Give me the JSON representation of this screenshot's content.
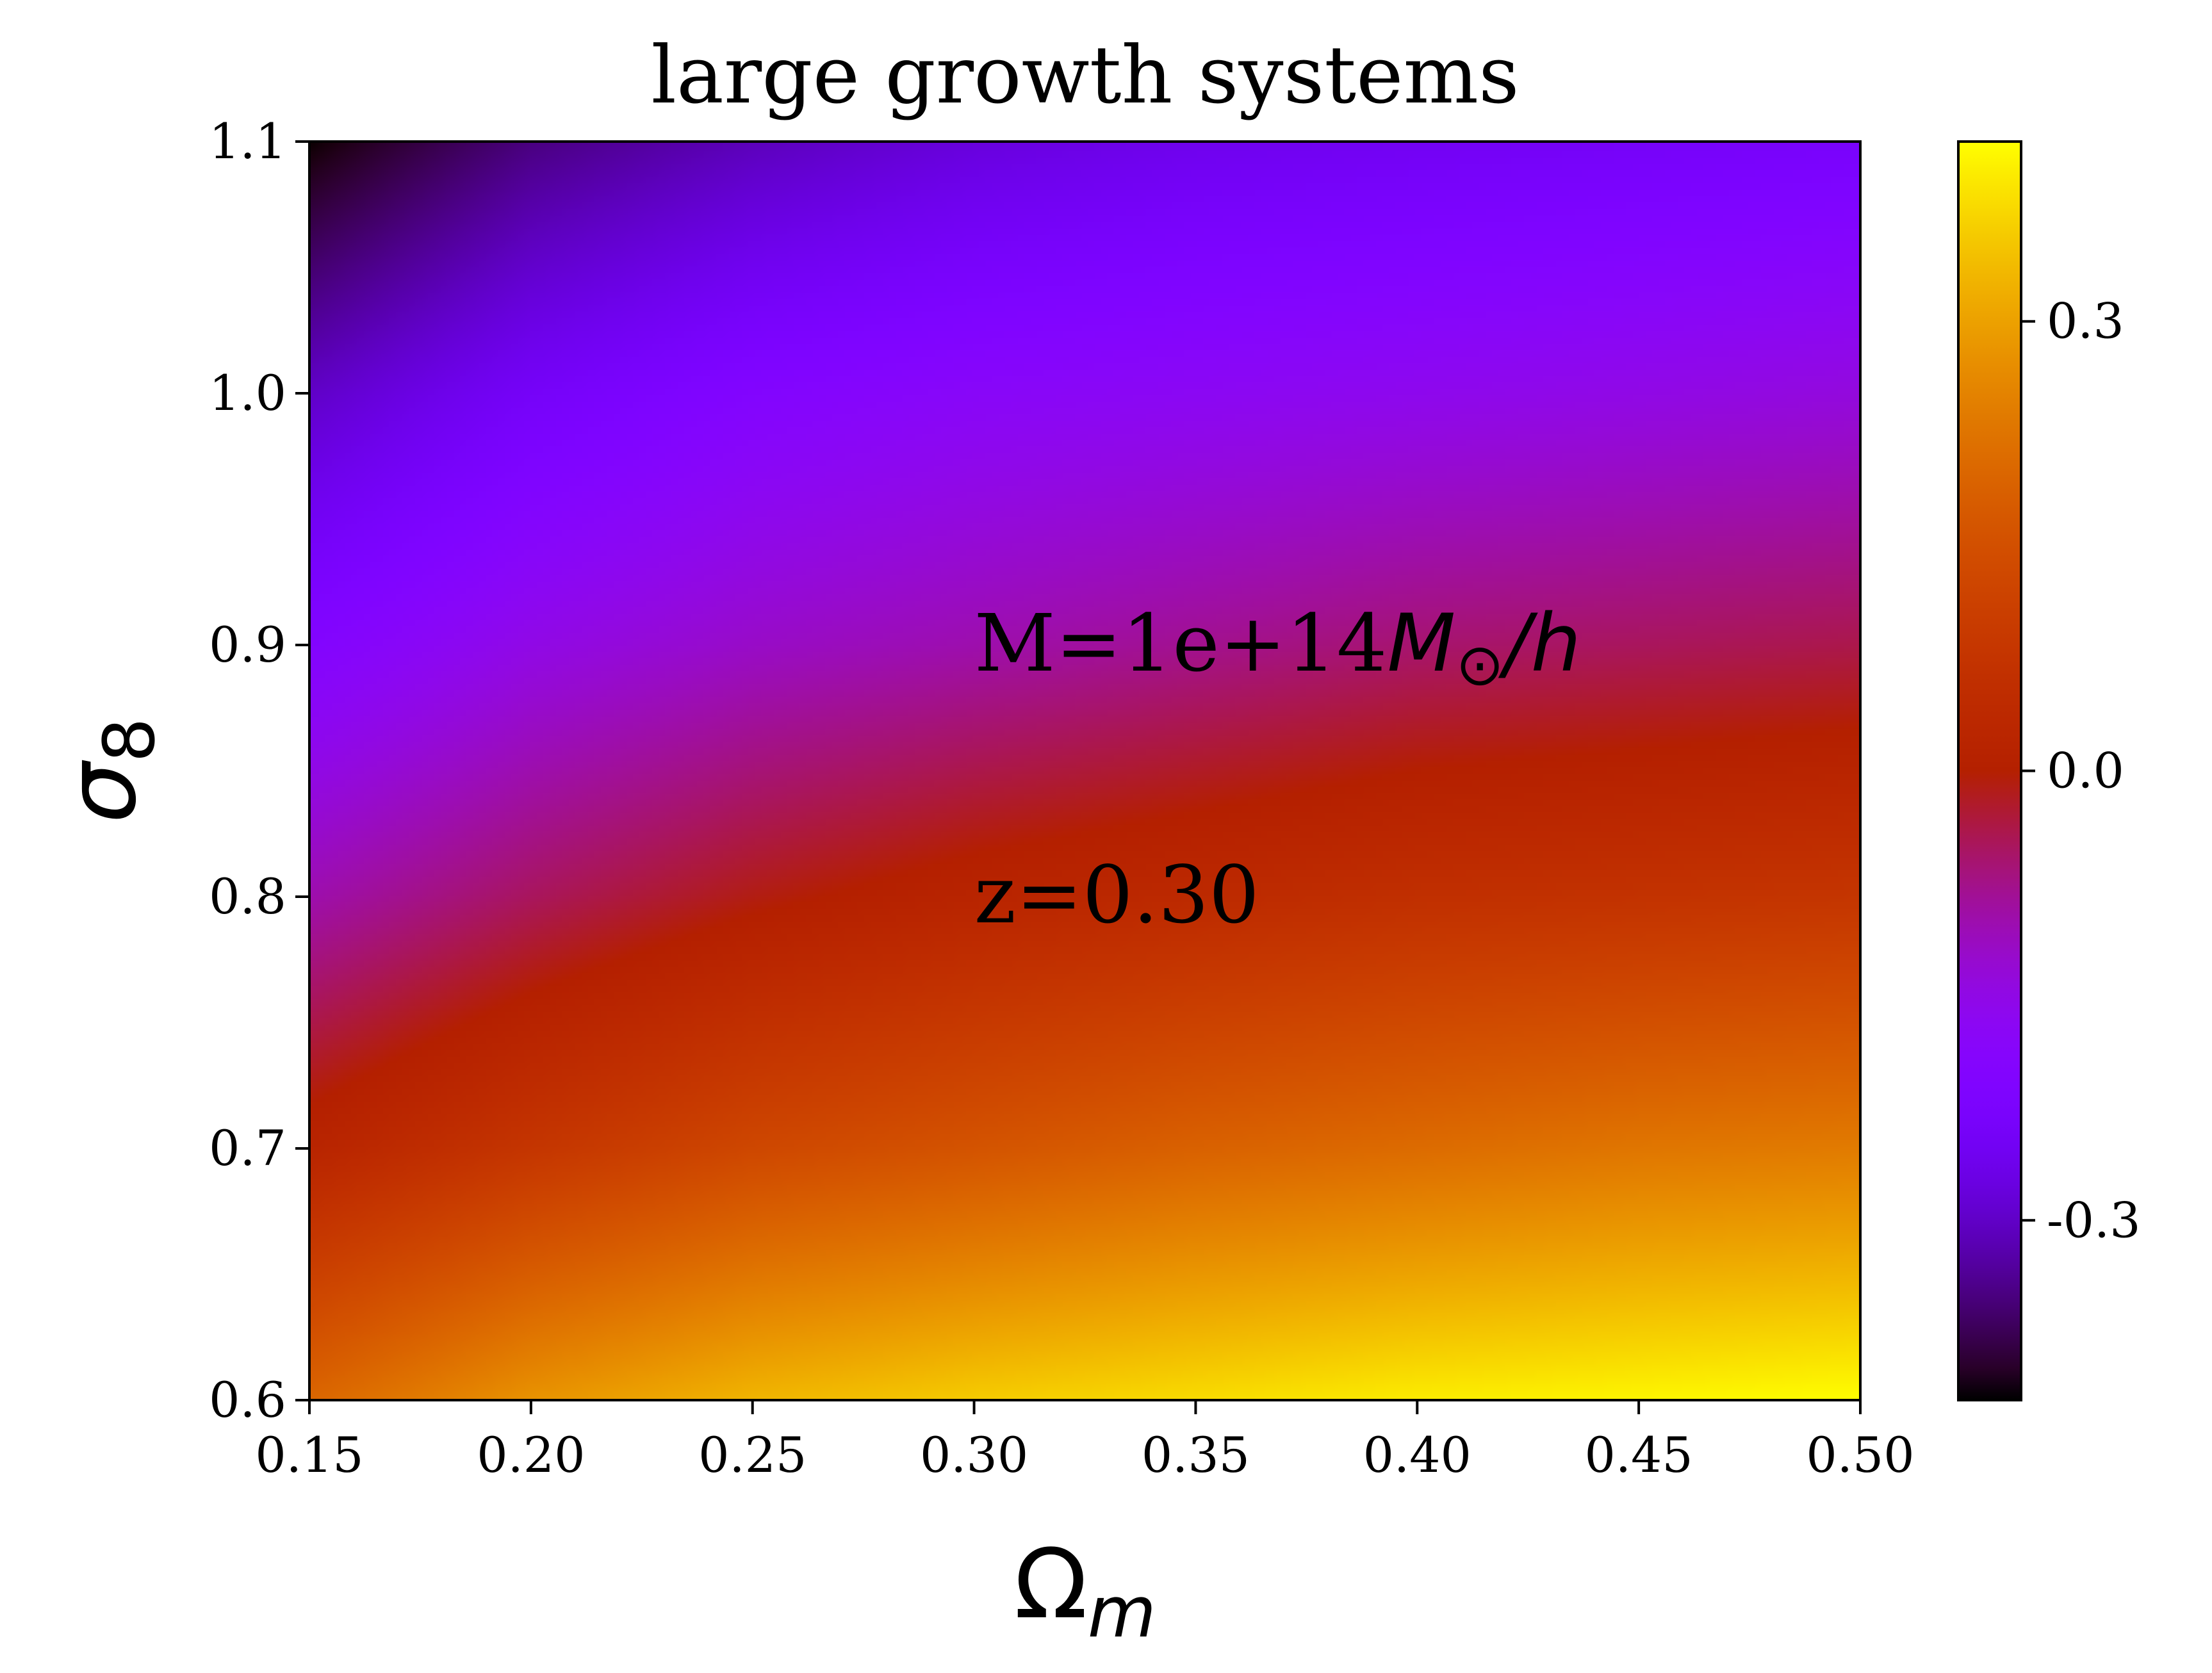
{
  "chart_data": {
    "type": "heatmap",
    "title": "large growth systems",
    "xlabel": {
      "symbol": "Ω",
      "subscript": "m"
    },
    "ylabel": {
      "symbol": "σ",
      "subscript": "8"
    },
    "xlim": [
      0.15,
      0.5
    ],
    "ylim": [
      0.6,
      1.1
    ],
    "x_ticks": [
      "0.15",
      "0.20",
      "0.25",
      "0.30",
      "0.35",
      "0.40",
      "0.45",
      "0.50"
    ],
    "y_ticks": [
      "0.6",
      "0.7",
      "0.8",
      "0.9",
      "1.0",
      "1.1"
    ],
    "x_tick_values": [
      0.15,
      0.2,
      0.25,
      0.3,
      0.35,
      0.4,
      0.45,
      0.5
    ],
    "y_tick_values": [
      0.6,
      0.7,
      0.8,
      0.9,
      1.0,
      1.1
    ],
    "colormap": "gnuplot",
    "colorbar": {
      "range": [
        -0.42,
        0.42
      ],
      "ticks": [
        "-0.3",
        "0.0",
        "0.3"
      ],
      "tick_values": [
        -0.3,
        0.0,
        0.3
      ]
    },
    "grid": false,
    "annotations": {
      "mass": {
        "prefix": "M=1e+14",
        "math": "M",
        "sub": "⊙",
        "suffix": "/h",
        "position": [
          0.3,
          0.9
        ]
      },
      "redshift": {
        "text": "z=0.30",
        "position": [
          0.3,
          0.8
        ]
      }
    },
    "field": {
      "x": [
        0.15,
        0.2,
        0.25,
        0.3,
        0.35,
        0.4,
        0.45,
        0.5
      ],
      "y": [
        0.6,
        0.7,
        0.8,
        0.9,
        1.0,
        1.1
      ],
      "z": [
        [
          0.2,
          0.28,
          0.33,
          0.36,
          0.38,
          0.4,
          0.41,
          0.42
        ],
        [
          0.02,
          0.08,
          0.13,
          0.16,
          0.19,
          0.21,
          0.23,
          0.24
        ],
        [
          -0.1,
          -0.05,
          -0.01,
          0.02,
          0.04,
          0.06,
          0.07,
          0.08
        ],
        [
          -0.2,
          -0.15,
          -0.12,
          -0.1,
          -0.08,
          -0.06,
          -0.05,
          -0.04
        ],
        [
          -0.3,
          -0.24,
          -0.2,
          -0.18,
          -0.17,
          -0.16,
          -0.15,
          -0.14
        ],
        [
          -0.42,
          -0.35,
          -0.31,
          -0.28,
          -0.26,
          -0.25,
          -0.24,
          -0.23
        ]
      ]
    }
  }
}
